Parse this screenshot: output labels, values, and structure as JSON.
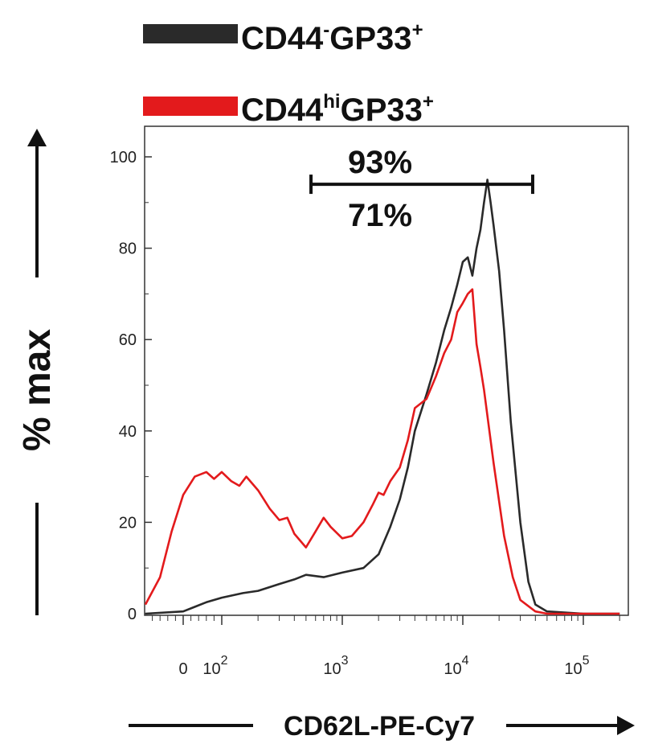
{
  "chart_data": {
    "type": "line",
    "xlabel": "CD62L-PE-Cy7",
    "ylabel": "% max",
    "x_scale": "biexponential",
    "ylim": [
      0,
      100
    ],
    "y_ticks": [
      "0",
      "20",
      "40",
      "60",
      "80",
      "100"
    ],
    "x_ticks": [
      {
        "base": "0",
        "exp": ""
      },
      {
        "base": "10",
        "exp": "2"
      },
      {
        "base": "10",
        "exp": "3"
      },
      {
        "base": "10",
        "exp": "4"
      },
      {
        "base": "10",
        "exp": "5"
      }
    ],
    "legend": [
      {
        "main": "CD44",
        "sup1": "-",
        "mid": "GP33",
        "sup2": "+",
        "color": "#2a2a2a"
      },
      {
        "main": "CD44",
        "sup1": "hi",
        "mid": "GP33",
        "sup2": "+",
        "color": "#e31a1c"
      }
    ],
    "gate": {
      "from": 550,
      "to": 38000,
      "y": 94,
      "label_top": "93%",
      "label_bottom": "71%"
    },
    "series": [
      {
        "color": "#2a2a2a",
        "points": [
          [
            -100,
            0
          ],
          [
            0,
            0.5
          ],
          [
            30,
            1.5
          ],
          [
            60,
            2.5
          ],
          [
            100,
            3.5
          ],
          [
            150,
            4.5
          ],
          [
            200,
            5
          ],
          [
            300,
            6.5
          ],
          [
            400,
            7.5
          ],
          [
            500,
            8.5
          ],
          [
            700,
            8
          ],
          [
            1000,
            9
          ],
          [
            1500,
            10
          ],
          [
            2000,
            13
          ],
          [
            2500,
            19
          ],
          [
            3000,
            25
          ],
          [
            3500,
            32
          ],
          [
            4000,
            40
          ],
          [
            5000,
            48
          ],
          [
            6000,
            55
          ],
          [
            7000,
            62
          ],
          [
            8000,
            67
          ],
          [
            9000,
            72
          ],
          [
            10000,
            77
          ],
          [
            11000,
            78
          ],
          [
            12000,
            74
          ],
          [
            13000,
            80
          ],
          [
            14000,
            84
          ],
          [
            15000,
            90
          ],
          [
            16000,
            95
          ],
          [
            17000,
            90
          ],
          [
            18000,
            85
          ],
          [
            20000,
            75
          ],
          [
            22000,
            62
          ],
          [
            25000,
            42
          ],
          [
            30000,
            20
          ],
          [
            35000,
            7
          ],
          [
            40000,
            2
          ],
          [
            50000,
            0.5
          ],
          [
            100000,
            0
          ],
          [
            200000,
            0
          ]
        ]
      },
      {
        "color": "#e31a1c",
        "points": [
          [
            -100,
            2
          ],
          [
            -60,
            8
          ],
          [
            -30,
            18
          ],
          [
            0,
            26
          ],
          [
            30,
            30
          ],
          [
            60,
            31
          ],
          [
            80,
            29.5
          ],
          [
            100,
            31
          ],
          [
            120,
            29
          ],
          [
            140,
            28
          ],
          [
            160,
            30
          ],
          [
            200,
            27
          ],
          [
            250,
            23
          ],
          [
            300,
            20.5
          ],
          [
            350,
            21
          ],
          [
            400,
            17.5
          ],
          [
            500,
            14.5
          ],
          [
            600,
            18
          ],
          [
            700,
            21
          ],
          [
            800,
            19
          ],
          [
            1000,
            16.5
          ],
          [
            1200,
            17
          ],
          [
            1500,
            20
          ],
          [
            1800,
            24
          ],
          [
            2000,
            26.5
          ],
          [
            2200,
            26
          ],
          [
            2500,
            29
          ],
          [
            3000,
            32
          ],
          [
            3500,
            38
          ],
          [
            4000,
            45
          ],
          [
            5000,
            47
          ],
          [
            6000,
            52
          ],
          [
            7000,
            57
          ],
          [
            8000,
            60
          ],
          [
            9000,
            66
          ],
          [
            10000,
            68
          ],
          [
            11000,
            70
          ],
          [
            12000,
            71
          ],
          [
            13000,
            59
          ],
          [
            14000,
            54
          ],
          [
            15000,
            49
          ],
          [
            18000,
            33
          ],
          [
            22000,
            17
          ],
          [
            26000,
            8
          ],
          [
            30000,
            3
          ],
          [
            40000,
            0.5
          ],
          [
            50000,
            0
          ],
          [
            200000,
            0
          ]
        ]
      }
    ]
  }
}
